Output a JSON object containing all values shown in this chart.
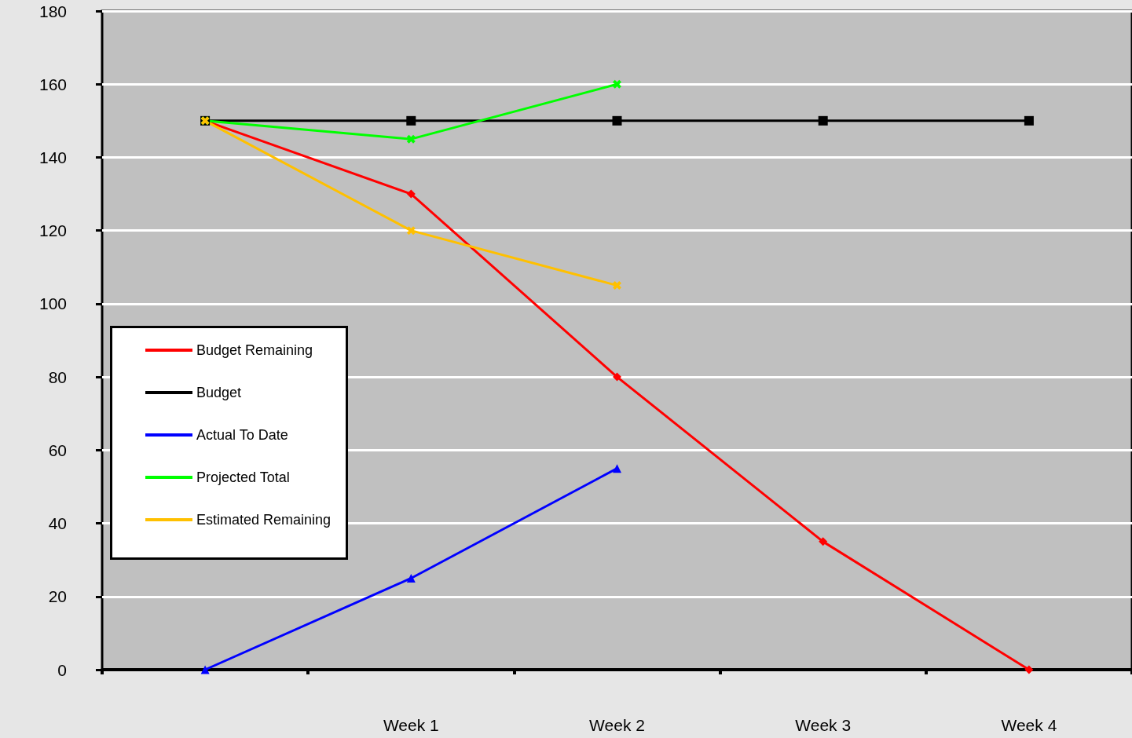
{
  "chart_data": {
    "type": "line",
    "categories": [
      null,
      "Week 1",
      "Week 2",
      "Week 3",
      "Week 4"
    ],
    "series": [
      {
        "name": "Budget Remaining",
        "color": "#ff0000",
        "marker": "diamond",
        "values": [
          150,
          130,
          80,
          35,
          0
        ]
      },
      {
        "name": "Budget",
        "color": "#000000",
        "marker": "square",
        "values": [
          150,
          150,
          150,
          150,
          150
        ]
      },
      {
        "name": "Actual To Date",
        "color": "#0000ff",
        "marker": "triangle",
        "values": [
          0,
          25,
          55,
          null,
          null
        ]
      },
      {
        "name": "Projected Total",
        "color": "#00ff00",
        "marker": "cross",
        "values": [
          150,
          145,
          160,
          null,
          null
        ]
      },
      {
        "name": "Estimated Remaining",
        "color": "#ffc000",
        "marker": "cross",
        "values": [
          150,
          120,
          105,
          null,
          null
        ]
      }
    ],
    "ylim": [
      0,
      180
    ],
    "yticks": [
      0,
      20,
      40,
      60,
      80,
      100,
      120,
      140,
      160,
      180
    ],
    "grid": "y",
    "legend": "left",
    "line_style": "solid"
  }
}
